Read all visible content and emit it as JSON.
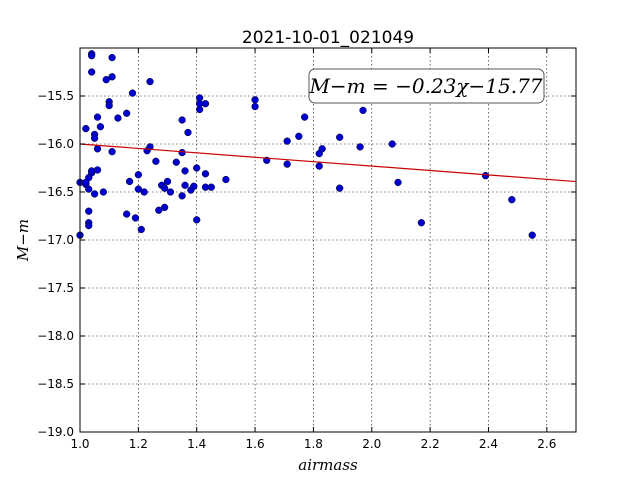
{
  "chart_data": {
    "type": "scatter",
    "title": "2021-10-01_021049",
    "xlabel": "airmass",
    "ylabel": "M−m",
    "xlim": [
      1.0,
      2.7
    ],
    "ylim": [
      -19.0,
      -15.0
    ],
    "xticks": [
      "1.0",
      "1.2",
      "1.4",
      "1.6",
      "1.8",
      "2.0",
      "2.2",
      "2.4",
      "2.6"
    ],
    "yticks": [
      "−15.5",
      "−16.0",
      "−16.5",
      "−17.0",
      "−17.5",
      "−18.0",
      "−18.5",
      "−19.0"
    ],
    "xtick_values": [
      1.0,
      1.2,
      1.4,
      1.6,
      1.8,
      2.0,
      2.2,
      2.4,
      2.6
    ],
    "ytick_values": [
      -15.5,
      -16.0,
      -16.5,
      -17.0,
      -17.5,
      -18.0,
      -18.5,
      -19.0
    ],
    "fit_label": "M−m = −0.23χ−15.77",
    "fit": {
      "slope": -0.23,
      "intercept": -15.77,
      "color": "#cc0000"
    },
    "point_color": "#0000cc",
    "grid": true,
    "points": [
      [
        1.0,
        -16.4
      ],
      [
        1.0,
        -16.95
      ],
      [
        1.02,
        -16.42
      ],
      [
        1.02,
        -15.84
      ],
      [
        1.02,
        -16.4
      ],
      [
        1.03,
        -16.47
      ],
      [
        1.03,
        -16.35
      ],
      [
        1.03,
        -16.7
      ],
      [
        1.03,
        -16.82
      ],
      [
        1.03,
        -16.85
      ],
      [
        1.04,
        -15.06
      ],
      [
        1.04,
        -15.08
      ],
      [
        1.04,
        -15.25
      ],
      [
        1.04,
        -16.3
      ],
      [
        1.04,
        -16.28
      ],
      [
        1.05,
        -15.9
      ],
      [
        1.05,
        -15.94
      ],
      [
        1.05,
        -16.52
      ],
      [
        1.06,
        -16.05
      ],
      [
        1.06,
        -16.27
      ],
      [
        1.06,
        -15.72
      ],
      [
        1.07,
        -15.82
      ],
      [
        1.08,
        -16.5
      ],
      [
        1.09,
        -15.33
      ],
      [
        1.1,
        -15.56
      ],
      [
        1.1,
        -15.6
      ],
      [
        1.11,
        -15.3
      ],
      [
        1.11,
        -15.1
      ],
      [
        1.11,
        -16.08
      ],
      [
        1.13,
        -15.73
      ],
      [
        1.16,
        -15.68
      ],
      [
        1.16,
        -16.73
      ],
      [
        1.17,
        -16.39
      ],
      [
        1.18,
        -15.47
      ],
      [
        1.19,
        -16.77
      ],
      [
        1.2,
        -16.32
      ],
      [
        1.2,
        -16.47
      ],
      [
        1.21,
        -16.89
      ],
      [
        1.22,
        -16.5
      ],
      [
        1.23,
        -16.07
      ],
      [
        1.24,
        -15.35
      ],
      [
        1.24,
        -16.03
      ],
      [
        1.26,
        -16.18
      ],
      [
        1.27,
        -16.69
      ],
      [
        1.28,
        -16.43
      ],
      [
        1.29,
        -16.46
      ],
      [
        1.29,
        -16.66
      ],
      [
        1.3,
        -16.39
      ],
      [
        1.31,
        -16.5
      ],
      [
        1.33,
        -16.19
      ],
      [
        1.35,
        -15.75
      ],
      [
        1.35,
        -16.09
      ],
      [
        1.35,
        -16.54
      ],
      [
        1.36,
        -16.43
      ],
      [
        1.36,
        -16.28
      ],
      [
        1.37,
        -15.88
      ],
      [
        1.38,
        -16.48
      ],
      [
        1.39,
        -16.44
      ],
      [
        1.4,
        -16.79
      ],
      [
        1.4,
        -16.25
      ],
      [
        1.41,
        -15.52
      ],
      [
        1.41,
        -15.64
      ],
      [
        1.41,
        -15.58
      ],
      [
        1.43,
        -15.58
      ],
      [
        1.43,
        -16.45
      ],
      [
        1.43,
        -16.31
      ],
      [
        1.45,
        -16.45
      ],
      [
        1.5,
        -16.37
      ],
      [
        1.6,
        -15.54
      ],
      [
        1.6,
        -15.61
      ],
      [
        1.64,
        -16.17
      ],
      [
        1.71,
        -15.97
      ],
      [
        1.71,
        -16.21
      ],
      [
        1.75,
        -15.92
      ],
      [
        1.77,
        -15.72
      ],
      [
        1.82,
        -16.1
      ],
      [
        1.82,
        -16.23
      ],
      [
        1.83,
        -16.05
      ],
      [
        1.89,
        -15.93
      ],
      [
        1.89,
        -16.46
      ],
      [
        1.96,
        -16.03
      ],
      [
        1.97,
        -15.65
      ],
      [
        2.07,
        -16.0
      ],
      [
        2.09,
        -16.4
      ],
      [
        2.17,
        -16.82
      ],
      [
        2.39,
        -16.33
      ],
      [
        2.48,
        -16.58
      ],
      [
        2.55,
        -16.95
      ]
    ]
  }
}
